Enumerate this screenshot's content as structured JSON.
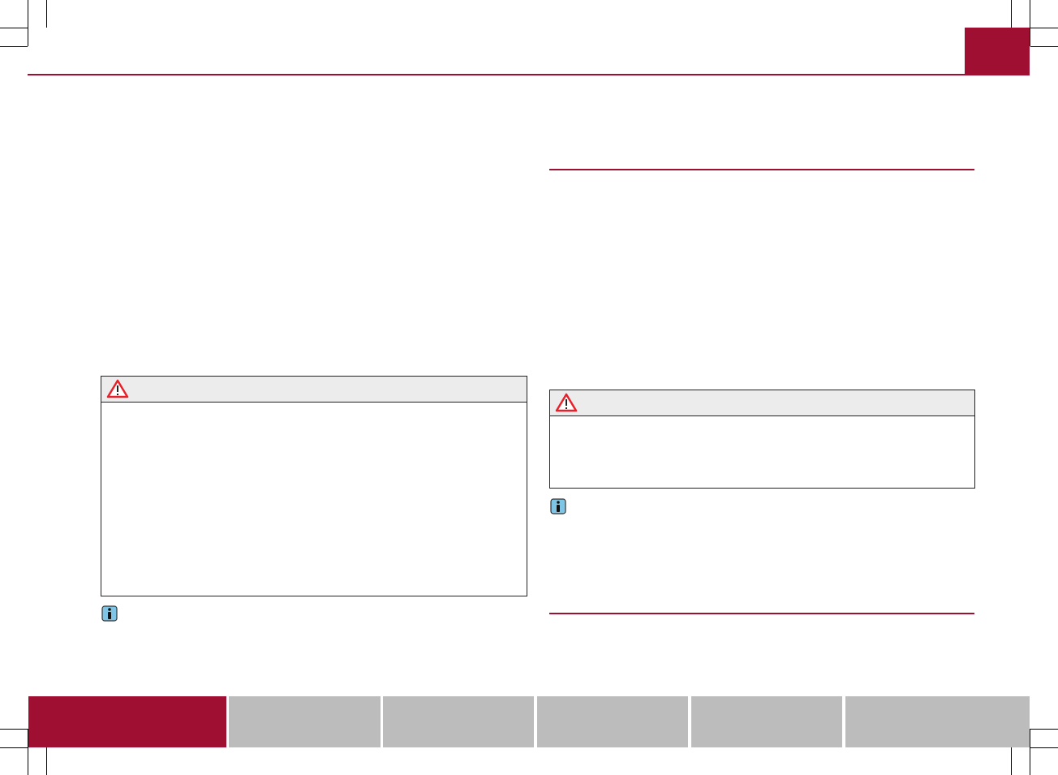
{
  "colors": {
    "accent": "#9e0f31",
    "nav_inactive": "#bcbcbc",
    "warning_header": "#ececec",
    "warning_icon": "#e8202a",
    "info_icon": "#7fc6e6"
  },
  "icons": {
    "warning": "warning-triangle-icon",
    "info": "info-icon"
  },
  "footer_nav": {
    "active_index": 0,
    "tab_count": 6
  }
}
